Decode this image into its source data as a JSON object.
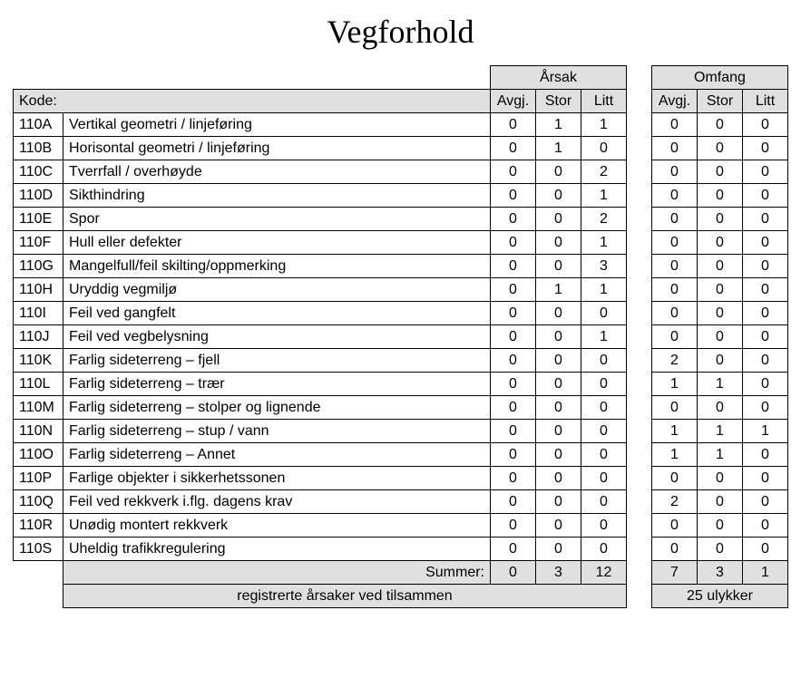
{
  "title": "Vegforhold",
  "headers": {
    "kode": "Kode:",
    "arsak": "Årsak",
    "omfang": "Omfang",
    "cols": [
      "Avgj.",
      "Stor",
      "Litt"
    ],
    "summer": "Summer:",
    "footer_label": "registrerte årsaker ved tilsammen",
    "footer_value": "25 ulykker"
  },
  "rows": [
    {
      "code": "110A",
      "desc": "Vertikal geometri / linjeføring",
      "a": [
        0,
        1,
        1
      ],
      "o": [
        0,
        0,
        0
      ]
    },
    {
      "code": "110B",
      "desc": "Horisontal geometri / linjeføring",
      "a": [
        0,
        1,
        0
      ],
      "o": [
        0,
        0,
        0
      ]
    },
    {
      "code": "110C",
      "desc": "Tverrfall / overhøyde",
      "a": [
        0,
        0,
        2
      ],
      "o": [
        0,
        0,
        0
      ]
    },
    {
      "code": "110D",
      "desc": "Sikthindring",
      "a": [
        0,
        0,
        1
      ],
      "o": [
        0,
        0,
        0
      ]
    },
    {
      "code": "110E",
      "desc": "Spor",
      "a": [
        0,
        0,
        2
      ],
      "o": [
        0,
        0,
        0
      ]
    },
    {
      "code": "110F",
      "desc": "Hull eller defekter",
      "a": [
        0,
        0,
        1
      ],
      "o": [
        0,
        0,
        0
      ]
    },
    {
      "code": "110G",
      "desc": "Mangelfull/feil skilting/oppmerking",
      "a": [
        0,
        0,
        3
      ],
      "o": [
        0,
        0,
        0
      ]
    },
    {
      "code": "110H",
      "desc": "Uryddig vegmiljø",
      "a": [
        0,
        1,
        1
      ],
      "o": [
        0,
        0,
        0
      ]
    },
    {
      "code": "110I",
      "desc": "Feil ved gangfelt",
      "a": [
        0,
        0,
        0
      ],
      "o": [
        0,
        0,
        0
      ]
    },
    {
      "code": "110J",
      "desc": "Feil ved vegbelysning",
      "a": [
        0,
        0,
        1
      ],
      "o": [
        0,
        0,
        0
      ]
    },
    {
      "code": "110K",
      "desc": "Farlig sideterreng – fjell",
      "a": [
        0,
        0,
        0
      ],
      "o": [
        2,
        0,
        0
      ]
    },
    {
      "code": "110L",
      "desc": "Farlig sideterreng – trær",
      "a": [
        0,
        0,
        0
      ],
      "o": [
        1,
        1,
        0
      ]
    },
    {
      "code": "110M",
      "desc": "Farlig sideterreng – stolper og lignende",
      "a": [
        0,
        0,
        0
      ],
      "o": [
        0,
        0,
        0
      ]
    },
    {
      "code": "110N",
      "desc": "Farlig sideterreng – stup / vann",
      "a": [
        0,
        0,
        0
      ],
      "o": [
        1,
        1,
        1
      ]
    },
    {
      "code": "110O",
      "desc": "Farlig sideterreng – Annet",
      "a": [
        0,
        0,
        0
      ],
      "o": [
        1,
        1,
        0
      ]
    },
    {
      "code": "110P",
      "desc": "Farlige objekter i sikkerhetssonen",
      "a": [
        0,
        0,
        0
      ],
      "o": [
        0,
        0,
        0
      ]
    },
    {
      "code": "110Q",
      "desc": "Feil ved rekkverk i.flg. dagens krav",
      "a": [
        0,
        0,
        0
      ],
      "o": [
        2,
        0,
        0
      ]
    },
    {
      "code": "110R",
      "desc": "Unødig montert rekkverk",
      "a": [
        0,
        0,
        0
      ],
      "o": [
        0,
        0,
        0
      ]
    },
    {
      "code": "110S",
      "desc": "Uheldig trafikkregulering",
      "a": [
        0,
        0,
        0
      ],
      "o": [
        0,
        0,
        0
      ]
    }
  ],
  "sums": {
    "a": [
      0,
      3,
      12
    ],
    "o": [
      7,
      3,
      1
    ]
  },
  "colors": {
    "header_bg": "#e0e0e0",
    "border": "#000000",
    "text": "#000000",
    "bg": "#ffffff"
  },
  "fonts": {
    "title_family": "Times New Roman",
    "title_size_pt": 27,
    "body_family": "Arial",
    "body_size_pt": 12
  }
}
